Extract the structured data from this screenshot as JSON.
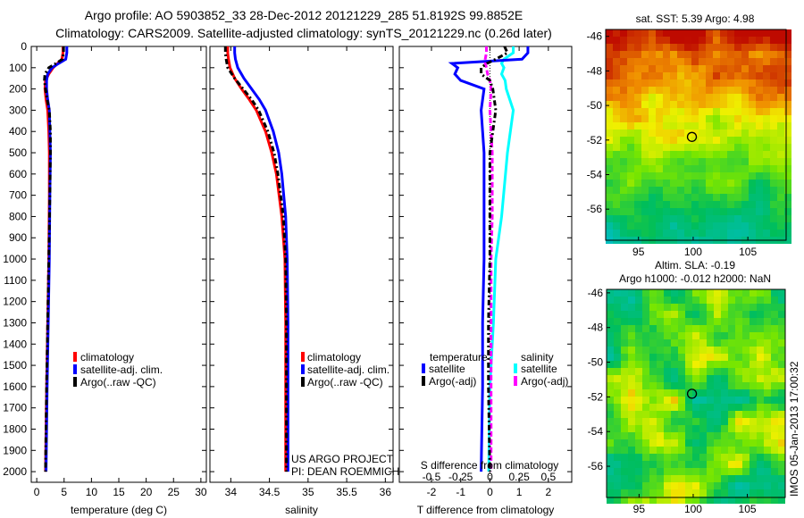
{
  "title_line1": "Argo profile: AO 5903852_33 28-Dec-2012 20121229_285 51.8192S 99.8852E",
  "title_line2": "Climatology: CARS2009. Satellite-adjusted climatology: synTS_20121229.nc (0.26d later)",
  "credit1": "US ARGO PROJECT",
  "credit2": "PI: DEAN ROEMMICH",
  "timestamp": "IMOS 05-Jan-2013 17:00:32",
  "colors": {
    "climatology": "#ff0000",
    "satellite": "#0000ff",
    "argo": "#000000",
    "sal_sat": "#00ffff",
    "sal_argo": "#ff00ff"
  },
  "chart_data": [
    {
      "type": "line",
      "name": "temperature-profile",
      "xlabel": "temperature (deg C)",
      "xlim": [
        -1,
        31
      ],
      "ylim": [
        2050,
        0
      ],
      "xticks": [
        "0",
        "5",
        "10",
        "15",
        "20",
        "25",
        "30"
      ],
      "xtick_values": [
        0,
        5,
        10,
        15,
        20,
        25,
        30
      ],
      "yticks": [
        "0",
        "100",
        "200",
        "300",
        "400",
        "500",
        "600",
        "700",
        "800",
        "900",
        "1000",
        "1100",
        "1200",
        "1300",
        "1400",
        "1500",
        "1600",
        "1700",
        "1800",
        "1900",
        "2000"
      ],
      "depth": [
        0,
        30,
        60,
        80,
        100,
        130,
        160,
        200,
        250,
        300,
        400,
        500,
        700,
        1000,
        1300,
        1600,
        2000
      ],
      "legend": [
        "climatology",
        "satellite-adj. clim.",
        "Argo(..raw -QC)"
      ],
      "series": [
        {
          "name": "climatology",
          "values": [
            4.8,
            4.8,
            4.6,
            3.8,
            3.0,
            2.2,
            1.6,
            1.5,
            1.7,
            2.0,
            2.2,
            2.3,
            2.3,
            2.2,
            2.0,
            1.8,
            1.6
          ]
        },
        {
          "name": "satellite-adj. clim.",
          "values": [
            5.5,
            5.5,
            5.3,
            4.0,
            2.8,
            2.0,
            1.8,
            1.8,
            2.0,
            2.3,
            2.4,
            2.5,
            2.4,
            2.3,
            2.1,
            1.9,
            1.7
          ]
        },
        {
          "name": "Argo(..raw -QC)",
          "values": [
            4.9,
            4.9,
            4.7,
            3.5,
            2.2,
            1.5,
            1.4,
            1.6,
            1.9,
            2.3,
            2.5,
            2.5,
            2.4,
            2.2,
            2.0,
            1.8,
            1.6
          ]
        }
      ]
    },
    {
      "type": "line",
      "name": "salinity-profile",
      "xlabel": "salinity",
      "xlim": [
        33.73,
        36.1
      ],
      "ylim": [
        2050,
        0
      ],
      "xticks": [
        "34",
        "34.5",
        "35",
        "35.5",
        "36"
      ],
      "xtick_values": [
        34,
        34.5,
        35,
        35.5,
        36
      ],
      "depth": [
        0,
        30,
        60,
        100,
        150,
        200,
        250,
        300,
        400,
        500,
        600,
        800,
        1000,
        1300,
        1600,
        2000
      ],
      "legend": [
        "climatology",
        "satellite-adj. clim.",
        "Argo(..raw -QC)"
      ],
      "series": [
        {
          "name": "climatology",
          "values": [
            33.96,
            33.96,
            33.97,
            33.99,
            34.05,
            34.14,
            34.24,
            34.33,
            34.45,
            34.53,
            34.59,
            34.66,
            34.7,
            34.71,
            34.71,
            34.71
          ]
        },
        {
          "name": "satellite-adj. clim.",
          "values": [
            34.05,
            34.05,
            34.06,
            34.09,
            34.17,
            34.27,
            34.37,
            34.45,
            34.55,
            34.62,
            34.66,
            34.71,
            34.73,
            34.74,
            34.74,
            34.74
          ]
        },
        {
          "name": "Argo(..raw -QC)",
          "values": [
            33.93,
            33.93,
            33.94,
            33.96,
            34.05,
            34.16,
            34.27,
            34.36,
            34.48,
            34.56,
            34.61,
            34.68,
            34.71,
            34.72,
            34.72,
            34.72
          ]
        }
      ]
    },
    {
      "type": "line",
      "name": "difference-profile",
      "xlabel": "T difference from climatology",
      "xlabel2": "S difference from climatology",
      "xlim": [
        -3.1,
        2.8
      ],
      "s_xlim": [
        -0.775,
        0.7
      ],
      "ylim": [
        2050,
        0
      ],
      "xticks": [
        "-2",
        "-1",
        "0",
        "1",
        "2"
      ],
      "xtick_values": [
        -2,
        -1,
        0,
        1,
        2
      ],
      "s_xticks": [
        "-0.5",
        "-0.25",
        "0",
        "0.25",
        "0.5"
      ],
      "s_xtick_values": [
        -0.5,
        -0.25,
        0,
        0.25,
        0.5
      ],
      "depth": [
        0,
        30,
        60,
        80,
        100,
        130,
        160,
        200,
        300,
        500,
        800,
        1000,
        1300,
        1600,
        2000
      ],
      "legend_t_title": "temperature",
      "legend_s_title": "salinity",
      "legend": [
        "satellite",
        "Argo(-adj)",
        "satellite",
        "Argo(-adj)"
      ],
      "series": [
        {
          "name": "T satellite",
          "values": [
            1.3,
            1.3,
            1.1,
            -1.3,
            -1.1,
            -1.2,
            -1.0,
            -0.2,
            -0.3,
            -0.2,
            -0.2,
            -0.2,
            -0.25,
            -0.25,
            -0.3
          ]
        },
        {
          "name": "T Argo(-adj)",
          "values": [
            0.5,
            0.6,
            0.2,
            -0.1,
            -0.3,
            -0.3,
            0.0,
            0.1,
            0.2,
            0.0,
            0.0,
            0.0,
            -0.05,
            -0.05,
            0.0
          ]
        },
        {
          "name": "S satellite",
          "values": [
            0.2,
            0.2,
            0.12,
            0.1,
            0.12,
            0.1,
            0.13,
            0.14,
            0.2,
            0.15,
            0.1,
            0.05,
            0.03,
            0.0,
            -0.01
          ]
        },
        {
          "name": "S Argo(-adj)",
          "values": [
            -0.03,
            -0.03,
            -0.04,
            -0.04,
            -0.03,
            -0.02,
            0.0,
            0.01,
            0.0,
            0.02,
            0.02,
            0.01,
            0.01,
            0.01,
            0.01
          ]
        }
      ]
    },
    {
      "type": "heatmap",
      "name": "sst-map",
      "title": "sat. SST: 5.39 Argo: 4.98",
      "xticks": [
        "95",
        "100",
        "105"
      ],
      "xtick_values": [
        95,
        100,
        105
      ],
      "yticks": [
        "-46",
        "-48",
        "-50",
        "-52",
        "-54",
        "-56"
      ],
      "ytick_values": [
        -46,
        -48,
        -50,
        -52,
        -54,
        -56
      ],
      "xlim": [
        92,
        108.5
      ],
      "ylim": [
        -57.8,
        -45.6
      ],
      "marker": [
        99.885,
        -51.819
      ]
    },
    {
      "type": "heatmap",
      "name": "sla-map",
      "title": "Altim. SLA: -0.19",
      "subtitle": "Argo h1000: -0.012 h2000: NaN",
      "xticks": [
        "95",
        "100",
        "105"
      ],
      "xtick_values": [
        95,
        100,
        105
      ],
      "yticks": [
        "-46",
        "-48",
        "-50",
        "-52",
        "-54",
        "-56"
      ],
      "ytick_values": [
        -46,
        -48,
        -50,
        -52,
        -54,
        -56
      ],
      "xlim": [
        92,
        108.5
      ],
      "ylim": [
        -57.8,
        -45.8
      ],
      "marker": [
        99.885,
        -51.819
      ]
    }
  ]
}
